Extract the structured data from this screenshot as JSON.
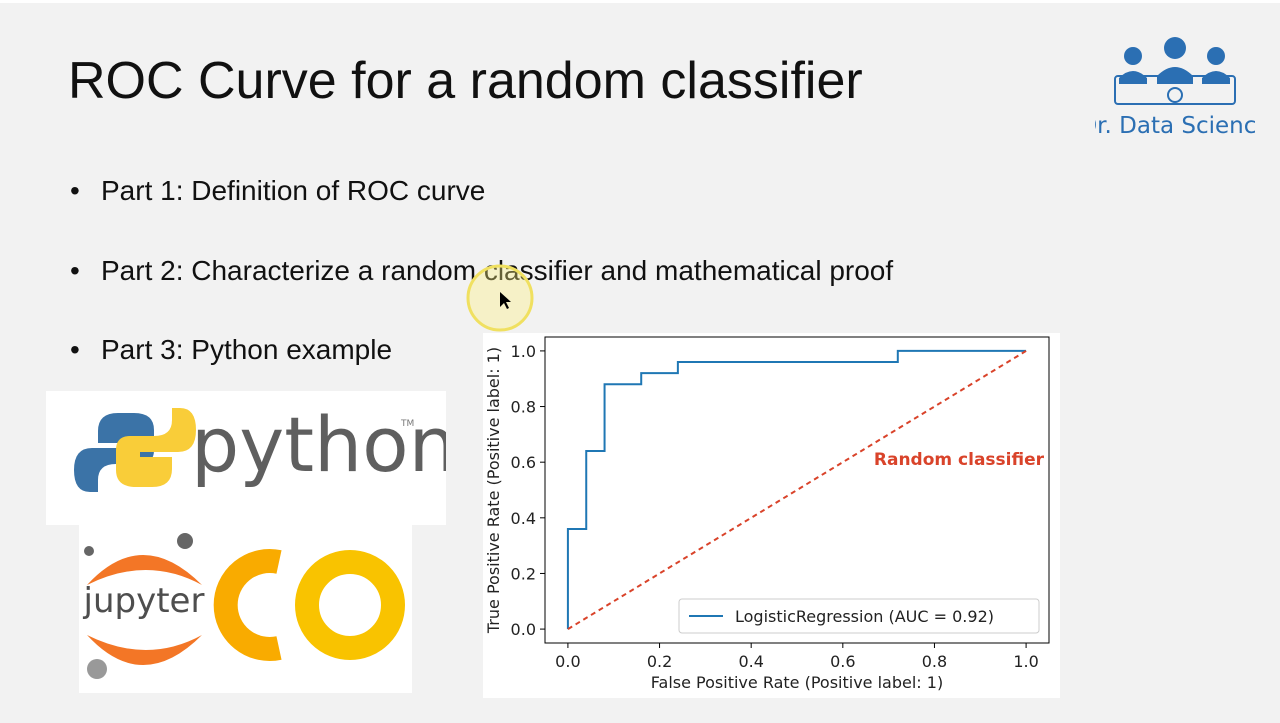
{
  "slide": {
    "title": "ROC Curve for a random classifier",
    "bullets": [
      "Part 1: Definition of ROC curve",
      "Part 2: Characterize a random classifier and mathematical proof",
      "Part 3: Python example"
    ],
    "brand": "Dr. Data Science",
    "python_logo": "python",
    "trademark": "TM",
    "jupyter_logo": "jupyter"
  },
  "chart_data": {
    "type": "line",
    "xlabel": "False Positive Rate (Positive label: 1)",
    "ylabel": "True Positive Rate (Positive label: 1)",
    "xlim": [
      -0.05,
      1.05
    ],
    "ylim": [
      -0.05,
      1.05
    ],
    "xticks": [
      {
        "value": 0,
        "label": "0.0"
      },
      0.2,
      0.4,
      0.6,
      0.8,
      {
        "value": 1,
        "label": "1.0"
      }
    ],
    "yticks": [
      {
        "value": 0,
        "label": "0.0"
      },
      0.2,
      0.4,
      0.6,
      0.8,
      {
        "value": 1,
        "label": "1.0"
      }
    ],
    "legend": "lower right",
    "series": [
      {
        "name": "LogisticRegression (AUC = 0.92)",
        "color": "#1f77b4",
        "x": [
          0,
          0,
          0.04,
          0.04,
          0.08,
          0.08,
          0.16,
          0.16,
          0.24,
          0.24,
          0.72,
          0.72,
          1
        ],
        "values": [
          0,
          0.36,
          0.36,
          0.64,
          0.64,
          0.88,
          0.88,
          0.92,
          0.92,
          0.96,
          0.96,
          1,
          1
        ]
      },
      {
        "color": "#d9432a",
        "dashed": true,
        "x": [
          0,
          1
        ],
        "values": [
          0,
          1
        ]
      }
    ],
    "annotation": "Random classifier"
  }
}
